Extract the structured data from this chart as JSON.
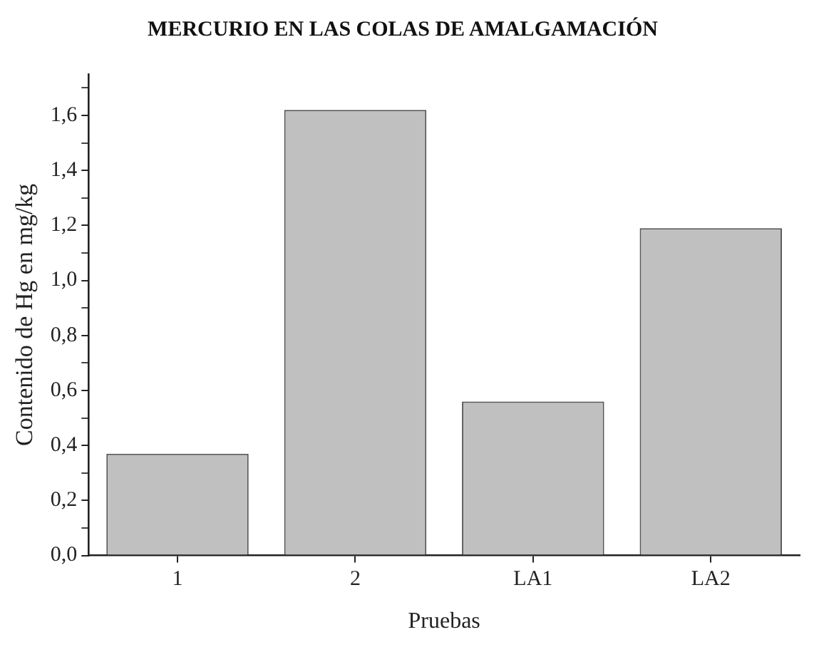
{
  "chart_data": {
    "type": "bar",
    "title": "MERCURIO EN LAS COLAS DE AMALGAMACIÓN",
    "xlabel": "Pruebas",
    "ylabel": "Contenido de Hg en mg/kg",
    "categories": [
      "1",
      "2",
      "LA1",
      "LA2"
    ],
    "values": [
      0.37,
      1.62,
      0.56,
      1.19
    ],
    "color": "#c0c0c0",
    "ylim": [
      0,
      1.75
    ],
    "yticks": [
      {
        "value": 0,
        "label": "0,0"
      },
      {
        "value": 0.1,
        "label": null
      },
      {
        "value": 0.2,
        "label": "0,2"
      },
      {
        "value": 0.3,
        "label": null
      },
      {
        "value": 0.4,
        "label": "0,4"
      },
      {
        "value": 0.5,
        "label": null
      },
      {
        "value": 0.6,
        "label": "0,6"
      },
      {
        "value": 0.7,
        "label": null
      },
      {
        "value": 0.8,
        "label": "0,8"
      },
      {
        "value": 0.9,
        "label": null
      },
      {
        "value": 1.0,
        "label": "1,0"
      },
      {
        "value": 1.1,
        "label": null
      },
      {
        "value": 1.2,
        "label": "1,2"
      },
      {
        "value": 1.3,
        "label": null
      },
      {
        "value": 1.4,
        "label": "1,4"
      },
      {
        "value": 1.5,
        "label": null
      },
      {
        "value": 1.6,
        "label": "1,6"
      },
      {
        "value": 1.7,
        "label": null
      }
    ],
    "grid": false,
    "legend": false
  }
}
